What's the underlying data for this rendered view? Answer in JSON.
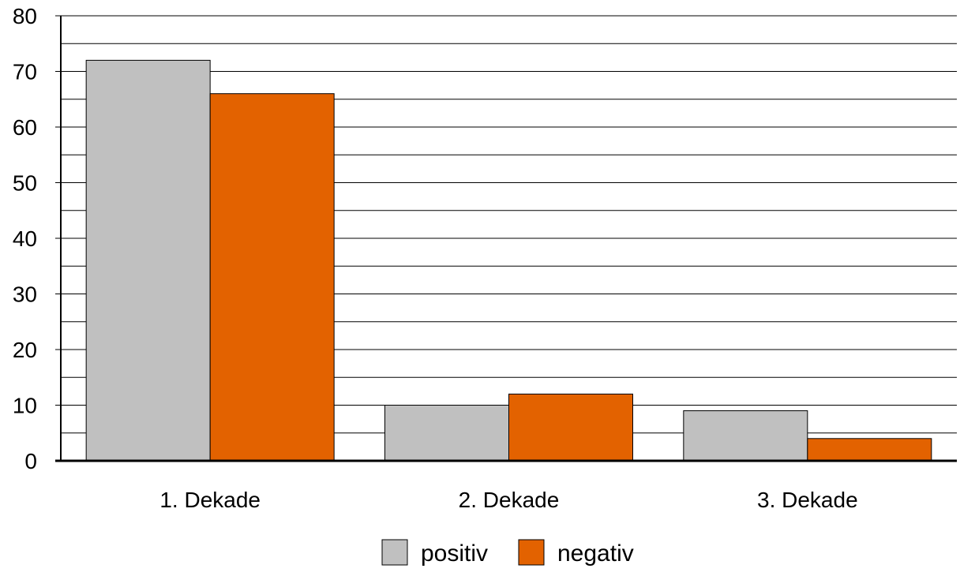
{
  "chart_data": {
    "type": "bar",
    "title": "",
    "xlabel": "",
    "ylabel": "",
    "categories": [
      "1. Dekade",
      "2. Dekade",
      "3. Dekade"
    ],
    "series": [
      {
        "name": "positiv",
        "values": [
          72,
          10,
          9
        ],
        "color": "#c0c0c0"
      },
      {
        "name": "negativ",
        "values": [
          66,
          12,
          4
        ],
        "color": "#e36200"
      }
    ],
    "ylim": [
      0,
      80
    ],
    "y_tick_labels": [
      "0",
      "10",
      "20",
      "30",
      "40",
      "50",
      "60",
      "70",
      "80"
    ],
    "grid": true,
    "minor_gridlines": true,
    "legend_position": "bottom-center"
  }
}
